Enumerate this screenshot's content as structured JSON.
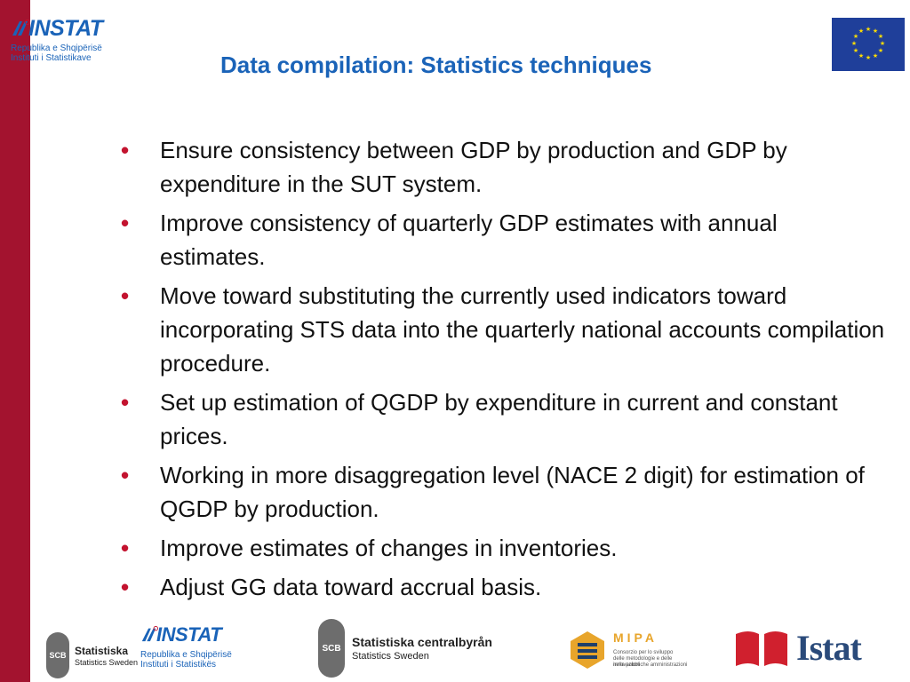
{
  "header": {
    "instat_logo": {
      "word": "INSTAT",
      "line1": "Republika e Shqipërisë",
      "line2": "Instituti i Statistikave"
    },
    "title": "Data compilation: Statistics techniques"
  },
  "bullets": [
    "Ensure consistency between GDP by production and GDP by expenditure in the SUT system.",
    "Improve consistency of quarterly GDP estimates with annual estimates.",
    "Move toward substituting the currently used indicators toward incorporating STS data into the quarterly national accounts compilation procedure.",
    "Set up estimation of QGDP by expenditure in current and constant prices.",
    "Working in more disaggregation level (NACE 2 digit) for estimation of QGDP by production.",
    "Improve estimates of changes in inventories.",
    "Adjust GG data toward accrual basis."
  ],
  "bullet_symbol": "•",
  "footer": {
    "scb_small": {
      "badge": "SCB",
      "main": "Statistiska",
      "sub": "Statistics Sweden"
    },
    "instat_small": {
      "word": "INSTAT",
      "line1": "Republika e Shqipërisë",
      "line2": "Instituti i Statistikës"
    },
    "scb_large": {
      "badge": "SCB",
      "main": "Statistiska centralbyrån",
      "sub": "Statistics Sweden"
    },
    "mipa": {
      "word": "MIPA",
      "line1": "Consorzio per lo sviluppo",
      "line2": "delle metodologie e delle innovazioni",
      "line3": "nelle pubbliche amministrazioni"
    },
    "istat": {
      "word": "Istat"
    }
  },
  "colors": {
    "left_bar": "#a3132f",
    "title": "#1a63b8",
    "bullet": "#c3132f",
    "eu_blue": "#1f3f9a",
    "eu_star": "#ffdd00",
    "istat_red": "#d0202e"
  }
}
